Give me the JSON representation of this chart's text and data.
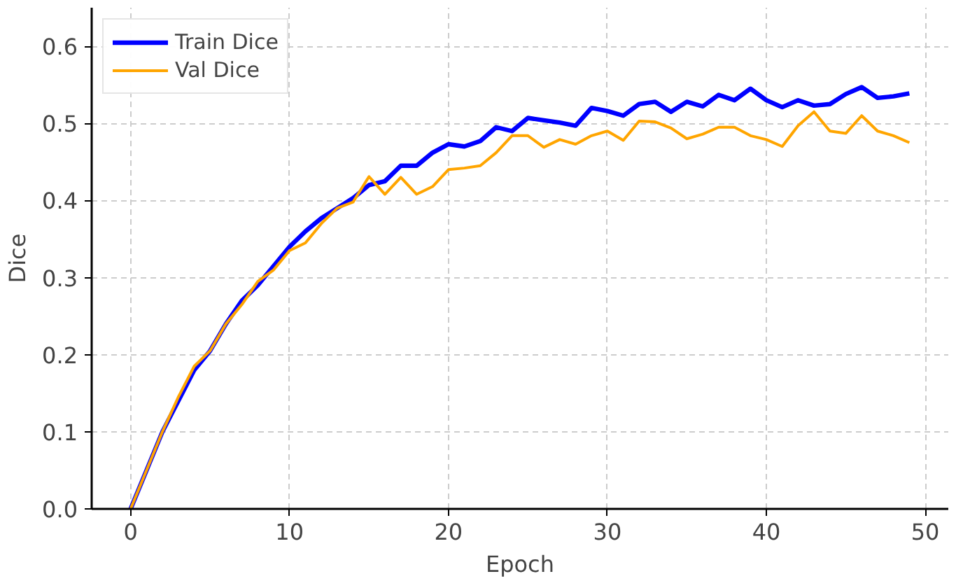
{
  "chart_data": {
    "type": "line",
    "xlabel": "Epoch",
    "ylabel": "Dice",
    "x": [
      0,
      1,
      2,
      3,
      4,
      5,
      6,
      7,
      8,
      9,
      10,
      11,
      12,
      13,
      14,
      15,
      16,
      17,
      18,
      19,
      20,
      21,
      22,
      23,
      24,
      25,
      26,
      27,
      28,
      29,
      30,
      31,
      32,
      33,
      34,
      35,
      36,
      37,
      38,
      39,
      40,
      41,
      42,
      43,
      44,
      45,
      46,
      47,
      48,
      49
    ],
    "series": [
      {
        "name": "Train Dice",
        "color": "#0000ff",
        "values": [
          0.0,
          0.05,
          0.1,
          0.14,
          0.18,
          0.205,
          0.24,
          0.27,
          0.29,
          0.315,
          0.34,
          0.36,
          0.377,
          0.39,
          0.403,
          0.42,
          0.425,
          0.445,
          0.445,
          0.462,
          0.473,
          0.47,
          0.477,
          0.495,
          0.49,
          0.507,
          0.504,
          0.501,
          0.497,
          0.52,
          0.516,
          0.51,
          0.525,
          0.528,
          0.515,
          0.528,
          0.522,
          0.537,
          0.53,
          0.545,
          0.53,
          0.521,
          0.53,
          0.523,
          0.525,
          0.538,
          0.547,
          0.533,
          0.535,
          0.539
        ]
      },
      {
        "name": "Val Dice",
        "color": "#ffa500",
        "values": [
          0.0,
          0.05,
          0.1,
          0.145,
          0.185,
          0.205,
          0.24,
          0.265,
          0.295,
          0.31,
          0.335,
          0.345,
          0.37,
          0.39,
          0.398,
          0.431,
          0.408,
          0.43,
          0.408,
          0.418,
          0.44,
          0.442,
          0.445,
          0.462,
          0.484,
          0.484,
          0.469,
          0.479,
          0.473,
          0.484,
          0.49,
          0.478,
          0.503,
          0.502,
          0.494,
          0.48,
          0.486,
          0.495,
          0.495,
          0.484,
          0.479,
          0.47,
          0.497,
          0.515,
          0.49,
          0.487,
          0.51,
          0.49,
          0.484,
          0.475
        ]
      }
    ],
    "xlim": [
      -2.45,
      51.45
    ],
    "ylim": [
      0,
      0.65
    ],
    "xticks": [
      0,
      10,
      20,
      30,
      40,
      50
    ],
    "yticks": [
      {
        "value": 0,
        "label": "0.0"
      },
      0.1,
      0.2,
      0.3,
      0.4,
      0.5,
      0.6
    ],
    "grid": true,
    "legend": "top left",
    "line_style": "solid",
    "marker": "none"
  }
}
